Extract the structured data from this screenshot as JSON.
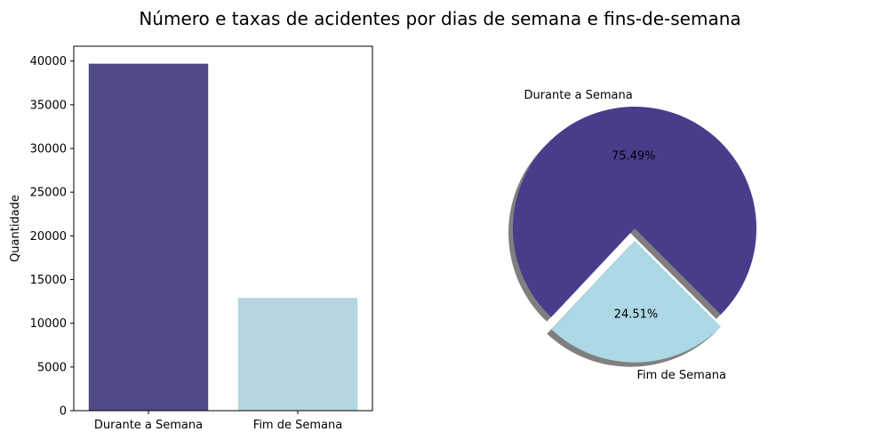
{
  "figure": {
    "title": "Número e taxas de acidentes por dias de semana e fins-de-semana"
  },
  "chart_data": [
    {
      "type": "bar",
      "categories": [
        "Durante a Semana",
        "Fim de Semana"
      ],
      "values": [
        39700,
        12900
      ],
      "ylabel": "Quantidade",
      "xlabel": "",
      "ylim": [
        0,
        41700
      ],
      "yticks": [
        0,
        5000,
        10000,
        15000,
        20000,
        25000,
        30000,
        35000,
        40000
      ],
      "colors": [
        "#4f4985",
        "#b3d6e0"
      ],
      "grid": false
    },
    {
      "type": "pie",
      "labels": [
        "Durante a Semana",
        "Fim de Semana"
      ],
      "values": [
        75.49,
        24.51
      ],
      "value_labels": [
        "75.49%",
        "24.51%"
      ],
      "colors": [
        "#483d8b",
        "#add8e6"
      ],
      "exploded": "Fim de Semana",
      "shadow": true
    }
  ]
}
